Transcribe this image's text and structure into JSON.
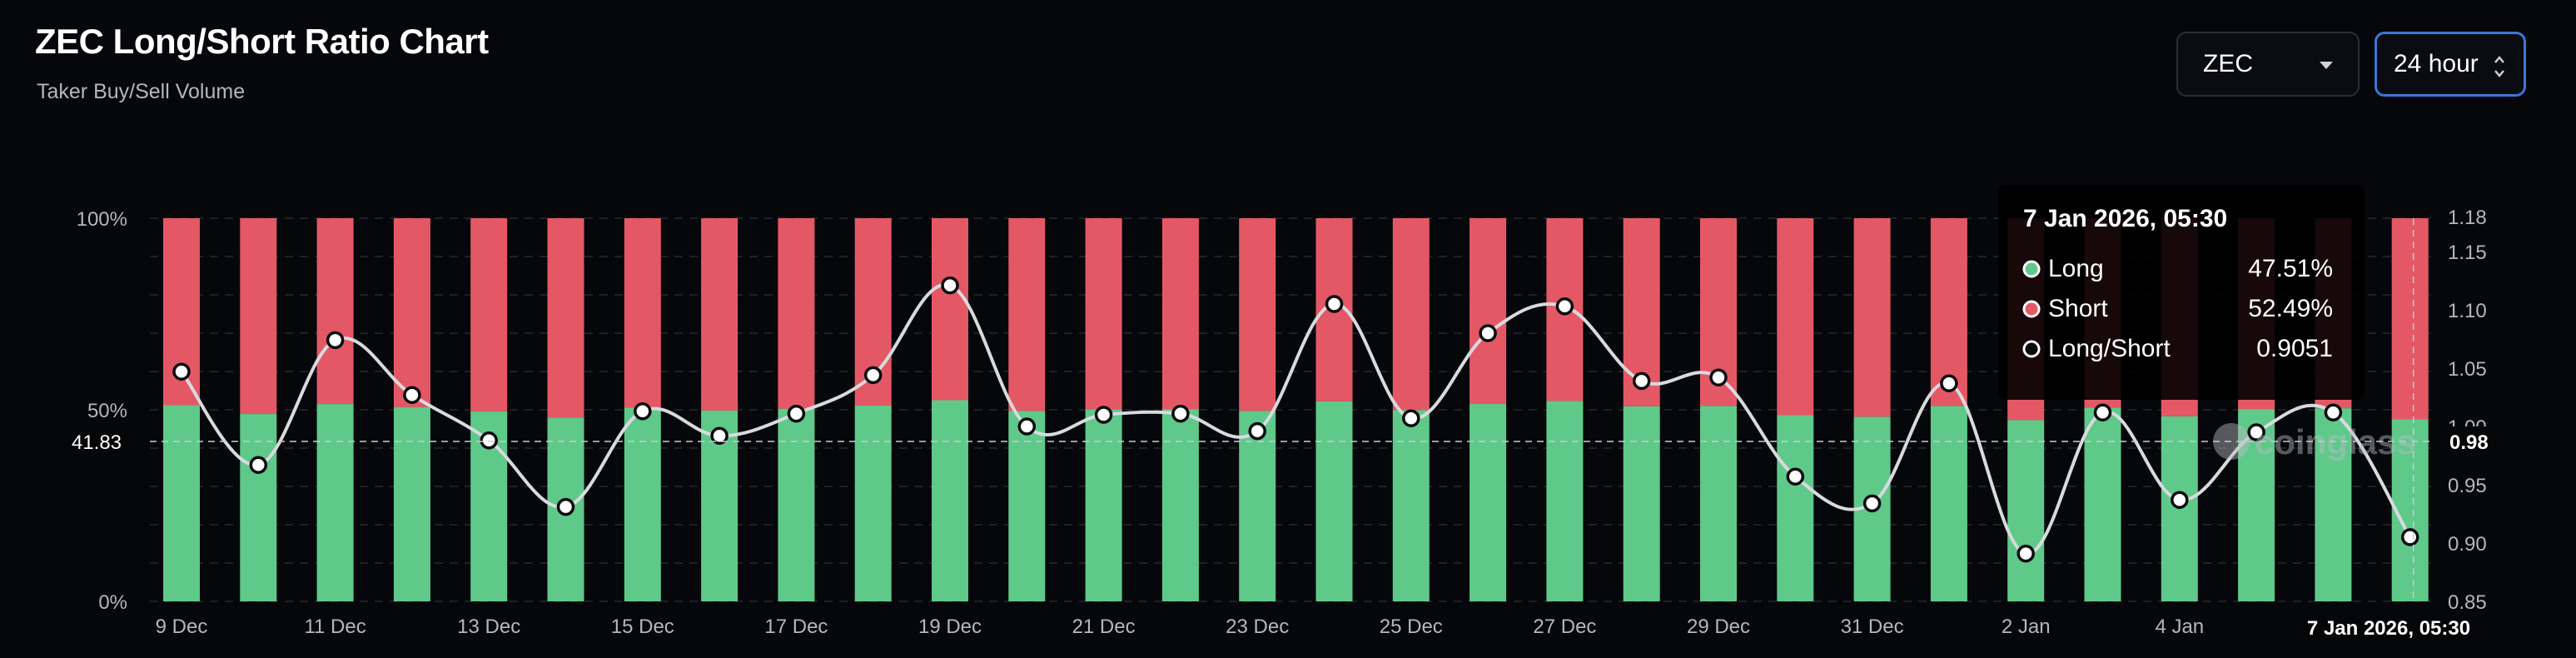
{
  "header": {
    "title": "ZEC Long/Short Ratio Chart",
    "subtitle": "Taker Buy/Sell Volume"
  },
  "controls": {
    "coin_select": "ZEC",
    "period_select": "24 hour"
  },
  "colors": {
    "long": "#5fc98a",
    "short": "#e45866",
    "background": "#06070b"
  },
  "chart_data": {
    "type": "bar",
    "title": "ZEC Long/Short Ratio Chart",
    "subtitle": "Taker Buy/Sell Volume",
    "x": [
      "9 Dec",
      "10 Dec",
      "11 Dec",
      "12 Dec",
      "13 Dec",
      "14 Dec",
      "15 Dec",
      "16 Dec",
      "17 Dec",
      "18 Dec",
      "19 Dec",
      "20 Dec",
      "21 Dec",
      "22 Dec",
      "23 Dec",
      "24 Dec",
      "25 Dec",
      "26 Dec",
      "27 Dec",
      "28 Dec",
      "29 Dec",
      "30 Dec",
      "31 Dec",
      "1 Jan",
      "2 Jan",
      "3 Jan",
      "4 Jan",
      "5 Jan",
      "6 Jan",
      "7 Jan"
    ],
    "x_tick_labels": [
      "9 Dec",
      "11 Dec",
      "13 Dec",
      "15 Dec",
      "17 Dec",
      "19 Dec",
      "21 Dec",
      "23 Dec",
      "25 Dec",
      "27 Dec",
      "29 Dec",
      "31 Dec",
      "2 Jan",
      "4 Jan"
    ],
    "series": [
      {
        "name": "Long",
        "axis": "left",
        "values": [
          51.2,
          48.9,
          51.5,
          50.7,
          49.6,
          48.0,
          50.6,
          49.8,
          50.3,
          51.1,
          52.5,
          49.7,
          50.1,
          50.2,
          49.7,
          52.2,
          49.9,
          51.6,
          52.3,
          50.9,
          51.0,
          48.6,
          48.2,
          51.0,
          47.3,
          50.6,
          48.3,
          50.2,
          50.4,
          47.51
        ]
      },
      {
        "name": "Short",
        "axis": "left",
        "values": [
          48.8,
          51.1,
          48.5,
          49.3,
          50.4,
          52.0,
          49.4,
          50.2,
          49.7,
          48.9,
          47.5,
          50.3,
          49.9,
          49.8,
          50.3,
          47.8,
          50.1,
          48.4,
          47.7,
          49.1,
          49.0,
          51.4,
          51.8,
          49.0,
          52.7,
          49.4,
          51.7,
          49.8,
          49.6,
          52.49
        ]
      },
      {
        "name": "Long/Short",
        "axis": "right",
        "values": [
          1.047,
          0.967,
          1.074,
          1.027,
          0.988,
          0.931,
          1.013,
          0.992,
          1.011,
          1.044,
          1.121,
          1.0,
          1.01,
          1.011,
          0.996,
          1.105,
          1.007,
          1.08,
          1.103,
          1.039,
          1.042,
          0.957,
          0.934,
          1.037,
          0.891,
          1.012,
          0.937,
          0.995,
          1.012,
          0.9051
        ]
      }
    ],
    "left_axis": {
      "ticks": [
        "0%",
        "50%",
        "100%"
      ],
      "range": [
        0,
        100
      ]
    },
    "right_axis": {
      "ticks": [
        "0.85",
        "0.90",
        "0.95",
        "0.98",
        "1.00",
        "1.05",
        "1.10",
        "1.15",
        "1.18"
      ],
      "range": [
        0.85,
        1.18
      ]
    },
    "crosshair": {
      "left_value": "41.83",
      "right_value": "0.98",
      "x_label": "7 Jan 2026, 05:30"
    },
    "tooltip": {
      "title": "7 Jan 2026, 05:30",
      "rows": [
        {
          "label": "Long",
          "value": "47.51%"
        },
        {
          "label": "Short",
          "value": "52.49%"
        },
        {
          "label": "Long/Short",
          "value": "0.9051"
        }
      ]
    },
    "watermark": "coinglass",
    "grid": true,
    "legend": "none"
  }
}
